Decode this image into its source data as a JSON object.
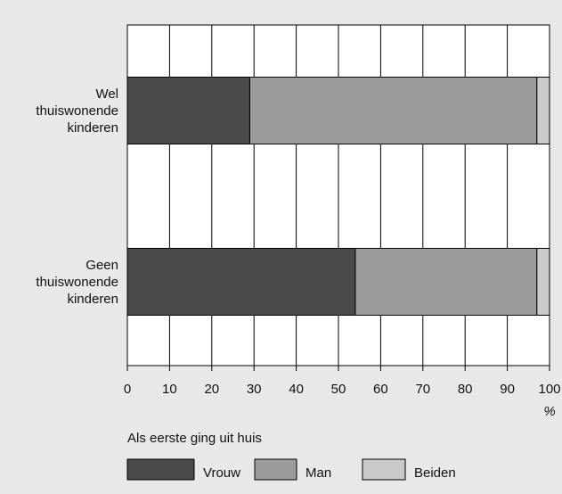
{
  "chart_data": {
    "type": "stacked-bar-horizontal",
    "categories": [
      "Wel thuiswonende kinderen",
      "Geen thuiswonende kinderen"
    ],
    "series": [
      {
        "name": "Vrouw",
        "color": "#4a4a4a",
        "values": [
          29,
          54
        ]
      },
      {
        "name": "Man",
        "color": "#9c9c9c",
        "values": [
          68,
          43
        ]
      },
      {
        "name": "Beiden",
        "color": "#c9c9c9",
        "values": [
          3,
          3
        ]
      }
    ],
    "xlim": [
      0,
      100
    ],
    "xticks": [
      0,
      10,
      20,
      30,
      40,
      50,
      60,
      70,
      80,
      90,
      100
    ],
    "x_unit": "%",
    "legend_title": "Als eerste ging uit huis",
    "grid": true
  }
}
